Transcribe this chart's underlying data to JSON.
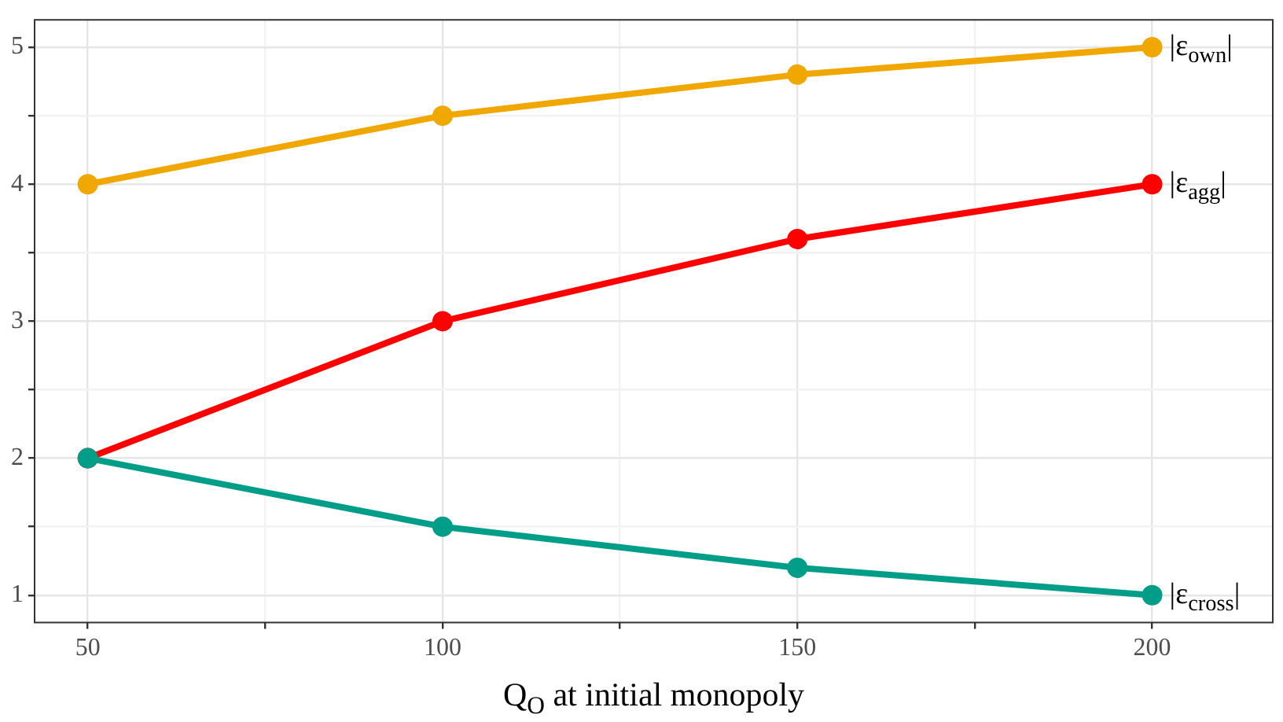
{
  "chart_data": {
    "type": "line",
    "xlabel": "Q$_{O}$ at initial monopoly",
    "x": [
      50,
      100,
      150,
      200
    ],
    "series": [
      {
        "name": "|ε$_{own}$|",
        "color": "#f0a800",
        "values": [
          4,
          4.5,
          4.8,
          5
        ]
      },
      {
        "name": "|ε$_{agg}$|",
        "color": "#ff0000",
        "values": [
          2,
          3,
          3.6,
          4
        ]
      },
      {
        "name": "|ε$_{cross}$|",
        "color": "#009e88",
        "values": [
          2,
          1.5,
          1.2,
          1
        ]
      }
    ],
    "xlim": [
      42.5,
      217
    ],
    "ylim": [
      0.8,
      5.2
    ],
    "xticks": [
      50,
      {
        "value": 75,
        "label": null
      },
      100,
      {
        "value": 125,
        "label": null
      },
      150,
      {
        "value": 175,
        "label": null
      },
      200
    ],
    "yticks": [
      1,
      {
        "value": 1.5,
        "label": null
      },
      2,
      {
        "value": 2.5,
        "label": null
      },
      3,
      {
        "value": 3.5,
        "label": null
      },
      4,
      {
        "value": 4.5,
        "label": null
      },
      5
    ],
    "grid": true,
    "marker": "circle",
    "line_style": "solid",
    "legend": false
  }
}
